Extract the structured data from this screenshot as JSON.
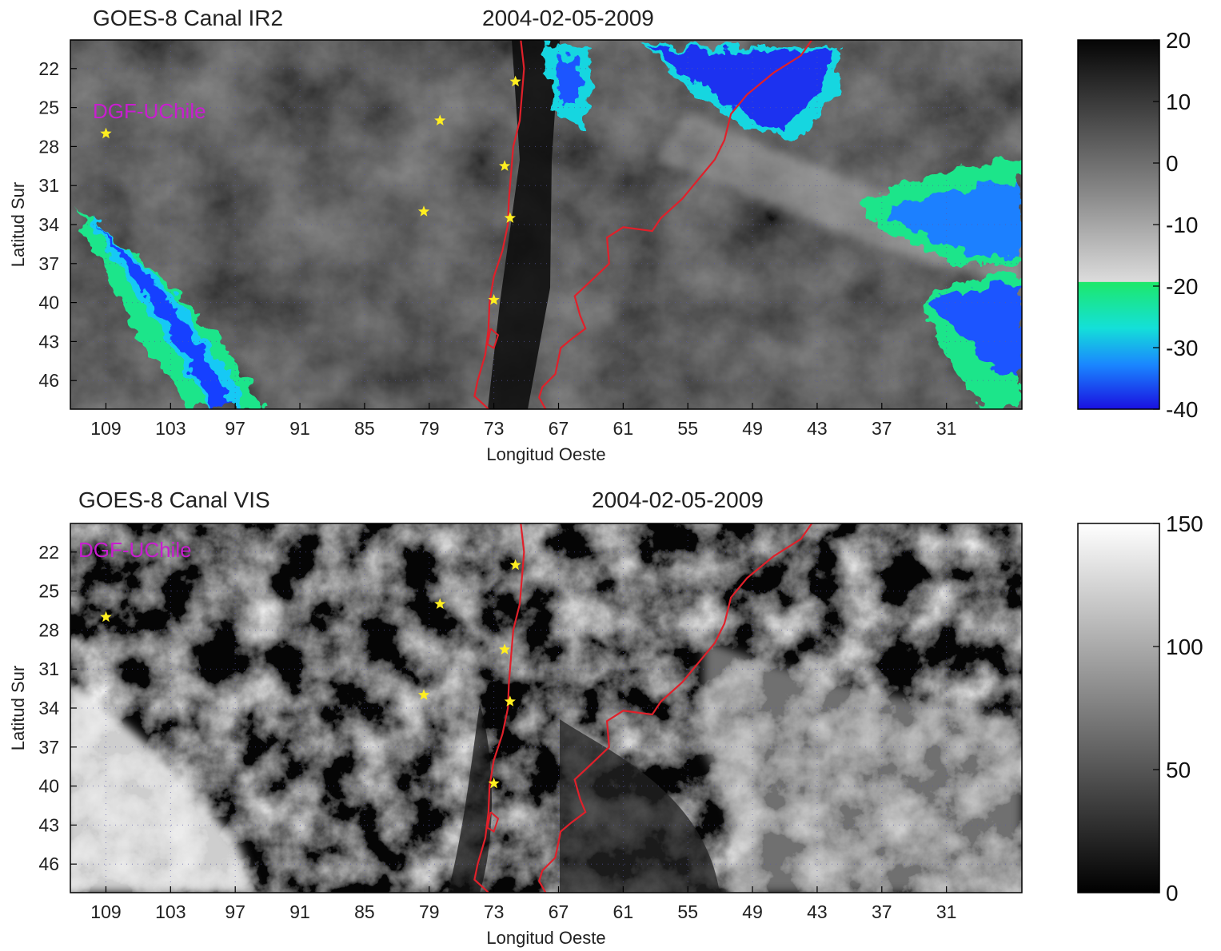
{
  "panels": [
    {
      "id": "ir2",
      "title": "GOES-8 Canal IR2",
      "datetime": "2004-02-05-2009",
      "watermark": "DGF-UChile",
      "xlabel": "Longitud Oeste",
      "ylabel": "Latitud Sur",
      "x_ticks": [
        "109",
        "103",
        "97",
        "91",
        "85",
        "79",
        "73",
        "67",
        "61",
        "55",
        "49",
        "43",
        "37",
        "31"
      ],
      "y_ticks": [
        "22",
        "25",
        "28",
        "31",
        "34",
        "37",
        "40",
        "43",
        "46"
      ],
      "colorbar": {
        "ticks": [
          "20",
          "10",
          "0",
          "-10",
          "-20",
          "-30",
          "-40"
        ],
        "range": [
          -40,
          20
        ],
        "colors": [
          "#0a0a0a",
          "#7a7a7a",
          "#d0d0d0",
          "#12e57a",
          "#10c8ff",
          "#1a40ff",
          "#1a00c8"
        ]
      },
      "stations": [
        {
          "lon": 109,
          "lat": 27
        },
        {
          "lon": 78,
          "lat": 26
        },
        {
          "lon": 71,
          "lat": 23
        },
        {
          "lon": 72,
          "lat": 29.5
        },
        {
          "lon": 79.5,
          "lat": 33
        },
        {
          "lon": 71.5,
          "lat": 33.5
        },
        {
          "lon": 73,
          "lat": 39.8
        }
      ]
    },
    {
      "id": "vis",
      "title": "GOES-8 Canal VIS",
      "datetime": "2004-02-05-2009",
      "watermark": "DGF-UChile",
      "xlabel": "Longitud Oeste",
      "ylabel": "Latitud Sur",
      "x_ticks": [
        "109",
        "103",
        "97",
        "91",
        "85",
        "79",
        "73",
        "67",
        "61",
        "55",
        "49",
        "43",
        "37",
        "31"
      ],
      "y_ticks": [
        "22",
        "25",
        "28",
        "31",
        "34",
        "37",
        "40",
        "43",
        "46"
      ],
      "colorbar": {
        "ticks": [
          "150",
          "100",
          "50",
          "0"
        ],
        "range": [
          0,
          150
        ],
        "colors": [
          "#000000",
          "#ffffff"
        ]
      },
      "stations": [
        {
          "lon": 109,
          "lat": 27
        },
        {
          "lon": 78,
          "lat": 26
        },
        {
          "lon": 71,
          "lat": 23
        },
        {
          "lon": 72,
          "lat": 29.5
        },
        {
          "lon": 79.5,
          "lat": 33
        },
        {
          "lon": 71.5,
          "lat": 33.5
        },
        {
          "lon": 73,
          "lat": 39.8
        }
      ]
    }
  ],
  "colors": {
    "coast": "#e0202a",
    "station": "#ffee20",
    "grid": "#5a5aa8"
  }
}
